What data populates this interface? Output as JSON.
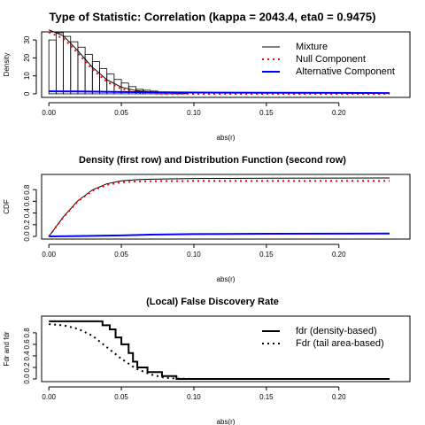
{
  "chart_data": [
    {
      "type": "histogram",
      "title": "Type of Statistic: Correlation (kappa = 2043.4, eta0 = 0.9475)",
      "xlabel": "abs(r)",
      "ylabel": "Density",
      "bins": [
        0,
        0.005,
        0.01,
        0.015,
        0.02,
        0.025,
        0.03,
        0.035,
        0.04,
        0.045,
        0.05,
        0.055,
        0.06,
        0.065,
        0.07,
        0.075,
        0.08,
        0.085,
        0.09,
        0.095
      ],
      "counts": [
        30,
        34,
        32,
        29,
        26,
        22,
        18,
        14,
        11,
        8,
        6,
        4,
        2.5,
        2,
        1.5,
        1,
        0.7,
        0.5,
        0.3
      ],
      "hist_color": "#000000",
      "series": [
        {
          "name": "Mixture",
          "color": "#000000",
          "linestyle": "solid",
          "linewidth": 1,
          "x": [
            0,
            0.01,
            0.02,
            0.03,
            0.04,
            0.05,
            0.06,
            0.07,
            0.08,
            0.1,
            0.15,
            0.2,
            0.235
          ],
          "values": [
            35.6,
            32.3,
            24.0,
            14.8,
            7.8,
            3.7,
            1.8,
            1.0,
            0.8,
            0.7,
            0.6,
            0.5,
            0.4
          ]
        },
        {
          "name": "Null Component",
          "color": "#ff0000",
          "linestyle": "dotted",
          "linewidth": 2,
          "x": [
            0,
            0.01,
            0.02,
            0.03,
            0.04,
            0.05,
            0.06,
            0.07,
            0.08,
            0.1,
            0.15,
            0.2,
            0.235
          ],
          "values": [
            34.2,
            30.9,
            22.7,
            13.6,
            6.7,
            2.7,
            0.9,
            0.2,
            0.04,
            0,
            0,
            0,
            0
          ]
        },
        {
          "name": "Alternative Component",
          "color": "#0000ff",
          "linestyle": "solid",
          "linewidth": 2,
          "x": [
            0,
            0.02,
            0.05,
            0.1,
            0.15,
            0.2,
            0.235
          ],
          "values": [
            1.4,
            1.3,
            1.0,
            0.7,
            0.6,
            0.5,
            0.4
          ]
        }
      ],
      "legend": "topright",
      "xlim": [
        -0.005,
        0.249
      ],
      "ylim": [
        -2,
        34.5
      ],
      "xticks": [
        {
          "value": 0,
          "label": "0.00"
        },
        0.05,
        {
          "value": 0.1,
          "label": "0.10"
        },
        0.15,
        {
          "value": 0.2,
          "label": "0.20"
        }
      ],
      "yticks": [
        0,
        10,
        20,
        30
      ]
    },
    {
      "type": "line",
      "title": "Density (first row) and Distribution Function (second row)",
      "xlabel": "abs(r)",
      "ylabel": "CDF",
      "series": [
        {
          "name": "Mixture",
          "color": "#000000",
          "linestyle": "solid",
          "linewidth": 1,
          "x": [
            0,
            0.01,
            0.02,
            0.03,
            0.04,
            0.05,
            0.06,
            0.07,
            0.1,
            0.15,
            0.2,
            0.235
          ],
          "values": [
            0,
            0.335,
            0.61,
            0.795,
            0.9,
            0.95,
            0.97,
            0.978,
            0.99,
            0.995,
            0.998,
            1
          ]
        },
        {
          "name": "Null Component",
          "color": "#ff0000",
          "linestyle": "dotted",
          "linewidth": 2,
          "x": [
            0,
            0.01,
            0.02,
            0.03,
            0.04,
            0.05,
            0.06,
            0.07,
            0.1,
            0.15,
            0.2,
            0.235
          ],
          "values": [
            0,
            0.33,
            0.6,
            0.78,
            0.88,
            0.925,
            0.94,
            0.945,
            0.9475,
            0.9475,
            0.9475,
            0.9475
          ]
        },
        {
          "name": "Alternative Component",
          "color": "#0000ff",
          "linestyle": "solid",
          "linewidth": 2,
          "x": [
            0,
            0.02,
            0.05,
            0.07,
            0.1,
            0.15,
            0.2,
            0.235
          ],
          "values": [
            0,
            0.006,
            0.017,
            0.03,
            0.04,
            0.045,
            0.048,
            0.05
          ]
        }
      ],
      "xlim": [
        -0.005,
        0.249
      ],
      "ylim": [
        -0.045,
        1.06
      ],
      "xticks": [
        {
          "value": 0,
          "label": "0.00"
        },
        0.05,
        {
          "value": 0.1,
          "label": "0.10"
        },
        0.15,
        {
          "value": 0.2,
          "label": "0.20"
        }
      ],
      "yticks": [
        {
          "value": 0,
          "label": "0.0"
        },
        0.2,
        0.4,
        0.6,
        0.8
      ]
    },
    {
      "type": "line",
      "title": "(Local) False Discovery Rate",
      "xlabel": "abs(r)",
      "ylabel": "Fdr and fdr",
      "series": [
        {
          "name": "fdr (density-based)",
          "color": "#000000",
          "linestyle": "solid",
          "linewidth": 2,
          "x": [
            0,
            0.037,
            0.037,
            0.042,
            0.042,
            0.046,
            0.046,
            0.05,
            0.05,
            0.055,
            0.055,
            0.058,
            0.058,
            0.061,
            0.061,
            0.068,
            0.068,
            0.078,
            0.078,
            0.088,
            0.088,
            0.235
          ],
          "values": [
            1,
            1,
            0.93,
            0.93,
            0.86,
            0.86,
            0.72,
            0.72,
            0.6,
            0.6,
            0.45,
            0.45,
            0.3,
            0.3,
            0.2,
            0.2,
            0.12,
            0.12,
            0.05,
            0.05,
            0,
            0
          ]
        },
        {
          "name": "Fdr (tail area-based)",
          "color": "#000000",
          "linestyle": "dotted",
          "linewidth": 2,
          "x": [
            0,
            0.01,
            0.02,
            0.03,
            0.04,
            0.05,
            0.06,
            0.07,
            0.08,
            0.09,
            0.1
          ],
          "values": [
            0.95,
            0.93,
            0.87,
            0.75,
            0.55,
            0.35,
            0.18,
            0.08,
            0.02,
            0.005,
            0
          ]
        }
      ],
      "legend": "topright",
      "xlim": [
        -0.005,
        0.249
      ],
      "ylim": [
        -0.046,
        1.09
      ],
      "xticks": [
        {
          "value": 0,
          "label": "0.00"
        },
        0.05,
        {
          "value": 0.1,
          "label": "0.10"
        },
        0.15,
        {
          "value": 0.2,
          "label": "0.20"
        }
      ],
      "yticks": [
        {
          "value": 0,
          "label": "0.0"
        },
        0.2,
        0.4,
        0.6,
        0.8
      ]
    }
  ]
}
